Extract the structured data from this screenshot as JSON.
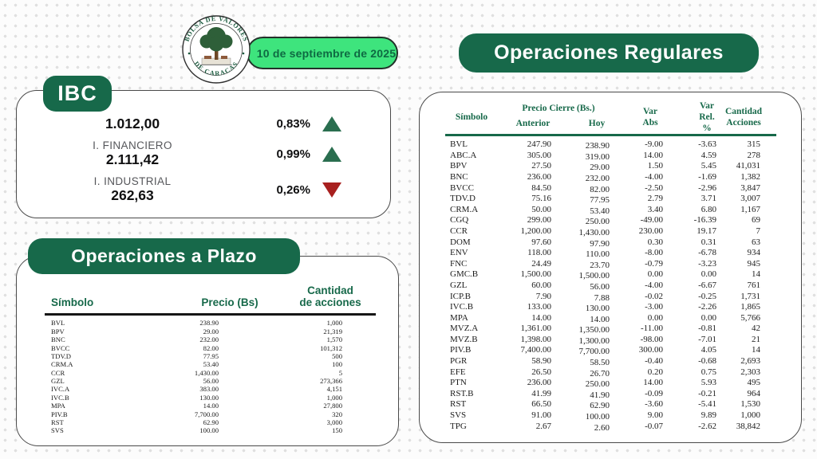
{
  "header": {
    "date": "10 de septiembre de 2025",
    "logo": {
      "arc_top": "BOLSA DE VALORES",
      "arc_bottom": "DE CARACAS"
    }
  },
  "colors": {
    "dark_green": "#17694a",
    "bright_green": "#3ee47d",
    "up_green": "#2a6e4f",
    "down_red": "#a8201f",
    "table_header_green": "#17694a"
  },
  "ibc": {
    "title": "IBC",
    "rows": [
      {
        "label": "",
        "value": "1.012,00",
        "pct": "0,83%",
        "direction": "up"
      },
      {
        "label": "I. FINANCIERO",
        "value": "2.111,42",
        "pct": "0,99%",
        "direction": "up"
      },
      {
        "label": "I. INDUSTRIAL",
        "value": "262,63",
        "pct": "0,26%",
        "direction": "down"
      }
    ]
  },
  "plazo": {
    "title": "Operaciones a Plazo",
    "headers": {
      "symbol": "Símbolo",
      "price": "Precio (Bs)",
      "qty_line1": "Cantidad",
      "qty_line2": "de acciones"
    },
    "rows": [
      {
        "symbol": "BVL",
        "price": "238.90",
        "qty": "1,000"
      },
      {
        "symbol": "BPV",
        "price": "29.00",
        "qty": "21,319"
      },
      {
        "symbol": "BNC",
        "price": "232.00",
        "qty": "1,570"
      },
      {
        "symbol": "BVCC",
        "price": "82.00",
        "qty": "101,312"
      },
      {
        "symbol": "TDV.D",
        "price": "77.95",
        "qty": "500"
      },
      {
        "symbol": "CRM.A",
        "price": "53.40",
        "qty": "100"
      },
      {
        "symbol": "CCR",
        "price": "1,430.00",
        "qty": "5"
      },
      {
        "symbol": "GZL",
        "price": "56.00",
        "qty": "273,366"
      },
      {
        "symbol": "IVC.A",
        "price": "383.00",
        "qty": "4,151"
      },
      {
        "symbol": "IVC.B",
        "price": "130.00",
        "qty": "1,000"
      },
      {
        "symbol": "MPA",
        "price": "14.00",
        "qty": "27,800"
      },
      {
        "symbol": "PIV.B",
        "price": "7,700.00",
        "qty": "320"
      },
      {
        "symbol": "RST",
        "price": "62.90",
        "qty": "3,000"
      },
      {
        "symbol": "SVS",
        "price": "100.00",
        "qty": "150"
      }
    ]
  },
  "regulares": {
    "title": "Operaciones Regulares",
    "headers": {
      "symbol": "Símbolo",
      "price_group": "Precio Cierre (Bs.)",
      "prev": "Anterior",
      "today": "Hoy",
      "var_abs_1": "Var",
      "var_abs_2": "Abs",
      "var_rel_1": "Var",
      "var_rel_2": "Rel. %",
      "qty_1": "Cantidad",
      "qty_2": "Acciones"
    },
    "rows": [
      {
        "symbol": "BVL",
        "prev": "247.90",
        "today": "238.90",
        "var_abs": "-9.00",
        "var_rel": "-3.63",
        "qty": "315"
      },
      {
        "symbol": "ABC.A",
        "prev": "305.00",
        "today": "319.00",
        "var_abs": "14.00",
        "var_rel": "4.59",
        "qty": "278"
      },
      {
        "symbol": "BPV",
        "prev": "27.50",
        "today": "29.00",
        "var_abs": "1.50",
        "var_rel": "5.45",
        "qty": "41,031"
      },
      {
        "symbol": "BNC",
        "prev": "236.00",
        "today": "232.00",
        "var_abs": "-4.00",
        "var_rel": "-1.69",
        "qty": "1,382"
      },
      {
        "symbol": "BVCC",
        "prev": "84.50",
        "today": "82.00",
        "var_abs": "-2.50",
        "var_rel": "-2.96",
        "qty": "3,847"
      },
      {
        "symbol": "TDV.D",
        "prev": "75.16",
        "today": "77.95",
        "var_abs": "2.79",
        "var_rel": "3.71",
        "qty": "3,007"
      },
      {
        "symbol": "CRM.A",
        "prev": "50.00",
        "today": "53.40",
        "var_abs": "3.40",
        "var_rel": "6.80",
        "qty": "1,167"
      },
      {
        "symbol": "CGQ",
        "prev": "299.00",
        "today": "250.00",
        "var_abs": "-49.00",
        "var_rel": "-16.39",
        "qty": "69"
      },
      {
        "symbol": "CCR",
        "prev": "1,200.00",
        "today": "1,430.00",
        "var_abs": "230.00",
        "var_rel": "19.17",
        "qty": "7"
      },
      {
        "symbol": "DOM",
        "prev": "97.60",
        "today": "97.90",
        "var_abs": "0.30",
        "var_rel": "0.31",
        "qty": "63"
      },
      {
        "symbol": "ENV",
        "prev": "118.00",
        "today": "110.00",
        "var_abs": "-8.00",
        "var_rel": "-6.78",
        "qty": "934"
      },
      {
        "symbol": "FNC",
        "prev": "24.49",
        "today": "23.70",
        "var_abs": "-0.79",
        "var_rel": "-3.23",
        "qty": "945"
      },
      {
        "symbol": "GMC.B",
        "prev": "1,500.00",
        "today": "1,500.00",
        "var_abs": "0.00",
        "var_rel": "0.00",
        "qty": "14"
      },
      {
        "symbol": "GZL",
        "prev": "60.00",
        "today": "56.00",
        "var_abs": "-4.00",
        "var_rel": "-6.67",
        "qty": "761"
      },
      {
        "symbol": "ICP.B",
        "prev": "7.90",
        "today": "7.88",
        "var_abs": "-0.02",
        "var_rel": "-0.25",
        "qty": "1,731"
      },
      {
        "symbol": "IVC.B",
        "prev": "133.00",
        "today": "130.00",
        "var_abs": "-3.00",
        "var_rel": "-2.26",
        "qty": "1,865"
      },
      {
        "symbol": "MPA",
        "prev": "14.00",
        "today": "14.00",
        "var_abs": "0.00",
        "var_rel": "0.00",
        "qty": "5,766"
      },
      {
        "symbol": "MVZ.A",
        "prev": "1,361.00",
        "today": "1,350.00",
        "var_abs": "-11.00",
        "var_rel": "-0.81",
        "qty": "42"
      },
      {
        "symbol": "MVZ.B",
        "prev": "1,398.00",
        "today": "1,300.00",
        "var_abs": "-98.00",
        "var_rel": "-7.01",
        "qty": "21"
      },
      {
        "symbol": "PIV.B",
        "prev": "7,400.00",
        "today": "7,700.00",
        "var_abs": "300.00",
        "var_rel": "4.05",
        "qty": "14"
      },
      {
        "symbol": "PGR",
        "prev": "58.90",
        "today": "58.50",
        "var_abs": "-0.40",
        "var_rel": "-0.68",
        "qty": "2,693"
      },
      {
        "symbol": "EFE",
        "prev": "26.50",
        "today": "26.70",
        "var_abs": "0.20",
        "var_rel": "0.75",
        "qty": "2,303"
      },
      {
        "symbol": "PTN",
        "prev": "236.00",
        "today": "250.00",
        "var_abs": "14.00",
        "var_rel": "5.93",
        "qty": "495"
      },
      {
        "symbol": "RST.B",
        "prev": "41.99",
        "today": "41.90",
        "var_abs": "-0.09",
        "var_rel": "-0.21",
        "qty": "964"
      },
      {
        "symbol": "RST",
        "prev": "66.50",
        "today": "62.90",
        "var_abs": "-3.60",
        "var_rel": "-5.41",
        "qty": "1,530"
      },
      {
        "symbol": "SVS",
        "prev": "91.00",
        "today": "100.00",
        "var_abs": "9.00",
        "var_rel": "9.89",
        "qty": "1,000"
      },
      {
        "symbol": "TPG",
        "prev": "2.67",
        "today": "2.60",
        "var_abs": "-0.07",
        "var_rel": "-2.62",
        "qty": "38,842"
      }
    ]
  }
}
